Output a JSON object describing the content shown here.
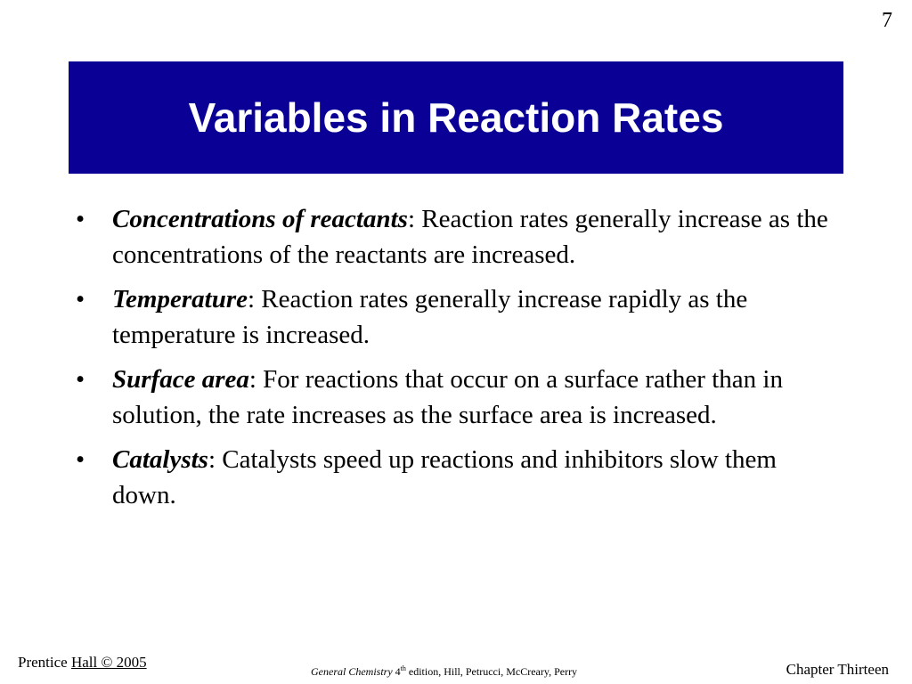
{
  "slide": {
    "number": "7",
    "title": "Variables in Reaction Rates",
    "title_bg_color": "#0a0096"
  },
  "bullets": [
    {
      "marker": "•",
      "term": "Concentrations of reactants",
      "text": ": Reaction rates generally increase as the concentrations of the reactants are increased."
    },
    {
      "marker": "•",
      "term": "Temperature",
      "text": ": Reaction rates generally increase rapidly as the temperature is increased."
    },
    {
      "marker": "•",
      "term": "Surface area",
      "text": ": For reactions that occur on a surface rather than in solution, the rate increases as the surface area is increased."
    },
    {
      "marker": "•",
      "term": "Catalysts",
      "text": ": Catalysts speed up reactions and inhibitors slow them down."
    }
  ],
  "footer": {
    "publisher_prefix": "Prentice ",
    "publisher_underlined": "Hall © 2005",
    "book_title": "General Chemistry",
    "edition_number": "4",
    "edition_suffix": "th",
    "edition_rest": " edition, Hill, Petrucci, McCreary, Perry",
    "chapter": "Chapter Thirteen"
  }
}
